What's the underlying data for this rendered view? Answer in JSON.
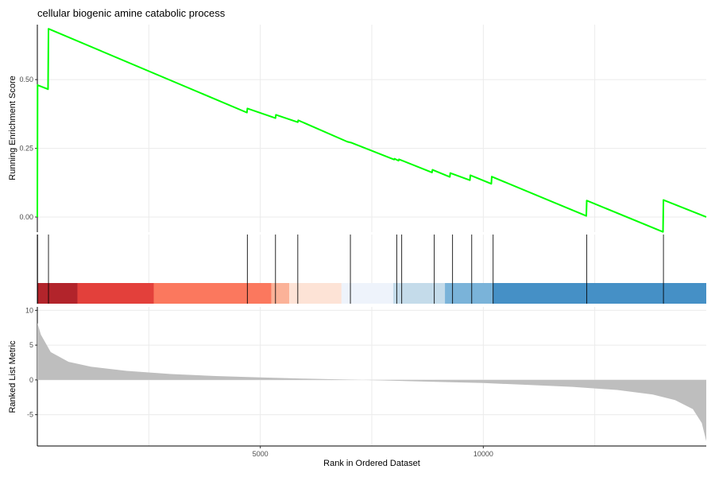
{
  "chart_data": {
    "type": "line",
    "title": "cellular biogenic amine catabolic process",
    "xlabel": "Rank in Ordered Dataset",
    "xlim": [
      0,
      15000
    ],
    "x_ticks": [
      5000,
      10000
    ],
    "x_tick_labels": [
      "5000",
      "10000"
    ],
    "grid": true,
    "running_es": {
      "ylabel": "Running Enrichment Score",
      "ylim": [
        -0.055,
        0.7
      ],
      "y_ticks": [
        0.0,
        0.25,
        0.5
      ],
      "y_tick_labels": [
        "0.00",
        "0.25",
        "0.50"
      ],
      "line_color": "#00ff00",
      "points": [
        [
          0,
          0.0
        ],
        [
          5,
          0.48
        ],
        [
          240,
          0.465
        ],
        [
          250,
          0.685
        ],
        [
          4700,
          0.38
        ],
        [
          4710,
          0.395
        ],
        [
          5340,
          0.36
        ],
        [
          5350,
          0.372
        ],
        [
          5840,
          0.345
        ],
        [
          5850,
          0.352
        ],
        [
          6950,
          0.274
        ],
        [
          7050,
          0.27
        ],
        [
          8000,
          0.209
        ],
        [
          8010,
          0.212
        ],
        [
          8100,
          0.205
        ],
        [
          8110,
          0.21
        ],
        [
          8850,
          0.162
        ],
        [
          8860,
          0.172
        ],
        [
          9250,
          0.146
        ],
        [
          9260,
          0.16
        ],
        [
          9700,
          0.134
        ],
        [
          9710,
          0.152
        ],
        [
          10180,
          0.121
        ],
        [
          10190,
          0.147
        ],
        [
          12310,
          0.004
        ],
        [
          12320,
          0.06
        ],
        [
          14030,
          -0.054
        ],
        [
          14040,
          0.062
        ],
        [
          15000,
          0.0
        ]
      ]
    },
    "gene_hits": [
      5,
      250,
      4710,
      5340,
      5840,
      7020,
      8060,
      8170,
      8900,
      9310,
      9740,
      10220,
      12320,
      14040
    ],
    "rank_heatmap": [
      {
        "from": 0,
        "to": 900,
        "color": "#b2242b"
      },
      {
        "from": 900,
        "to": 2610,
        "color": "#e3403b"
      },
      {
        "from": 2610,
        "to": 5250,
        "color": "#fb785e"
      },
      {
        "from": 5250,
        "to": 5650,
        "color": "#fbb298"
      },
      {
        "from": 5650,
        "to": 6820,
        "color": "#fde3d6"
      },
      {
        "from": 6820,
        "to": 7980,
        "color": "#eef3fb"
      },
      {
        "from": 7980,
        "to": 9140,
        "color": "#c4dbea"
      },
      {
        "from": 9140,
        "to": 10220,
        "color": "#7ab3d9"
      },
      {
        "from": 10220,
        "to": 15000,
        "color": "#4590c6"
      }
    ],
    "ranked_list": {
      "ylabel": "Ranked List Metric",
      "ylim": [
        -9.5,
        10.5
      ],
      "y_ticks": [
        -5,
        0,
        5,
        10
      ],
      "y_tick_labels": [
        "-5",
        "0",
        "5",
        "10"
      ],
      "fill_color": "#bebebe",
      "points": [
        [
          0,
          8.2
        ],
        [
          80,
          6.5
        ],
        [
          300,
          4.0
        ],
        [
          700,
          2.6
        ],
        [
          1200,
          1.9
        ],
        [
          2000,
          1.3
        ],
        [
          3000,
          0.85
        ],
        [
          4000,
          0.55
        ],
        [
          5000,
          0.35
        ],
        [
          6000,
          0.18
        ],
        [
          7000,
          0.05
        ],
        [
          7300,
          0.0
        ],
        [
          8000,
          -0.12
        ],
        [
          9000,
          -0.28
        ],
        [
          10000,
          -0.45
        ],
        [
          11000,
          -0.72
        ],
        [
          12000,
          -1.0
        ],
        [
          13000,
          -1.45
        ],
        [
          13800,
          -2.1
        ],
        [
          14300,
          -2.9
        ],
        [
          14700,
          -4.2
        ],
        [
          14900,
          -6.2
        ],
        [
          15000,
          -8.8
        ]
      ]
    }
  }
}
